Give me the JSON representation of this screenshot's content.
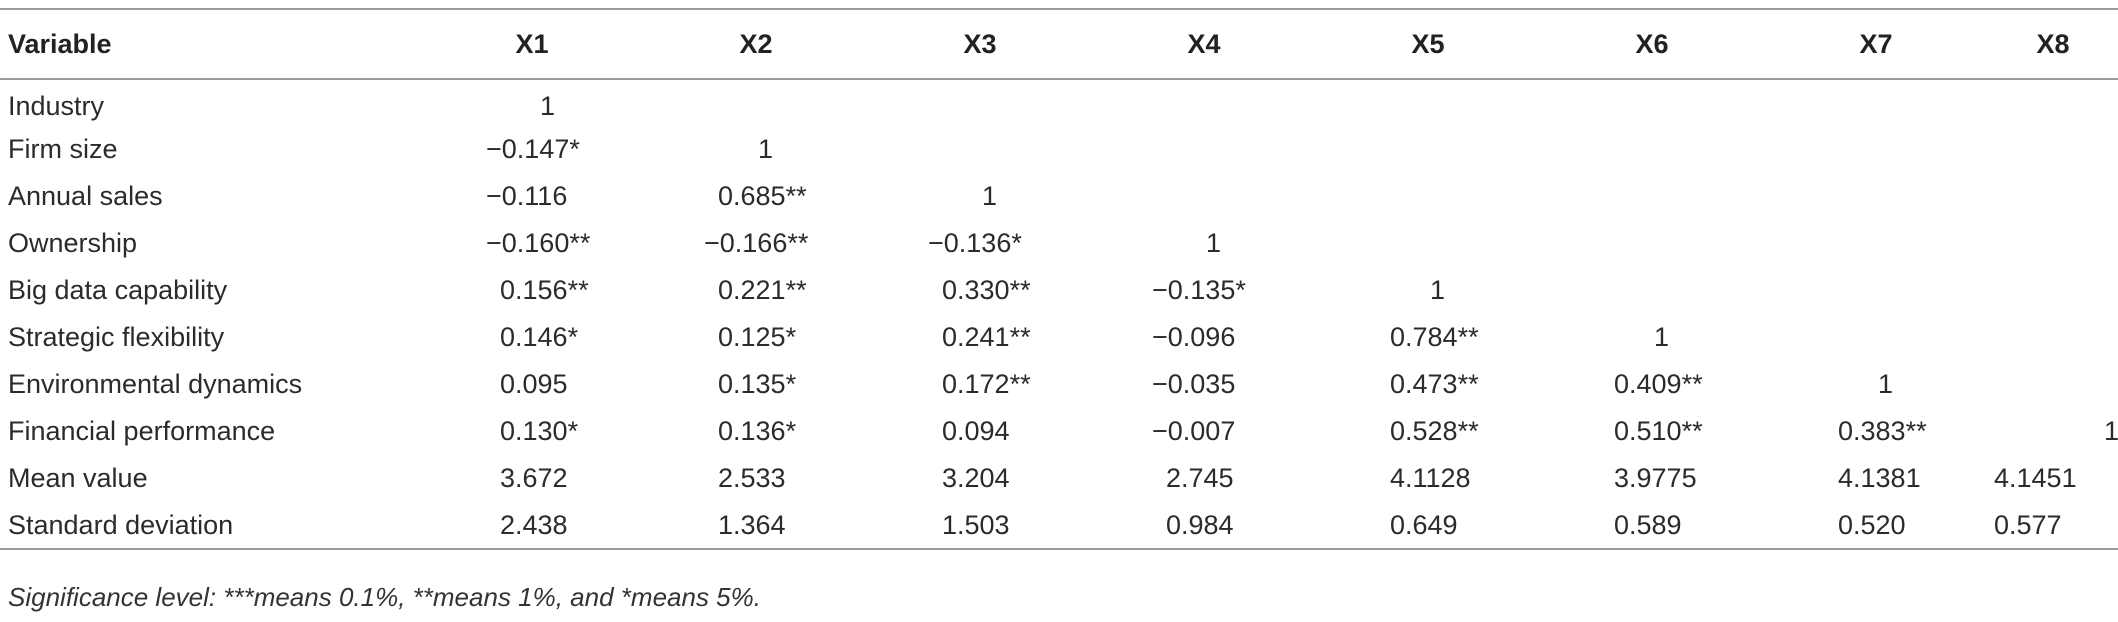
{
  "table": {
    "headers": [
      "Variable",
      "X1",
      "X2",
      "X3",
      "X4",
      "X5",
      "X6",
      "X7",
      "X8"
    ],
    "rows": [
      {
        "variable": "Industry",
        "values": [
          "1",
          "",
          "",
          "",
          "",
          "",
          "",
          ""
        ]
      },
      {
        "variable": "Firm size",
        "values": [
          "−0.147*",
          "1",
          "",
          "",
          "",
          "",
          "",
          ""
        ]
      },
      {
        "variable": "Annual sales",
        "values": [
          "−0.116",
          "0.685**",
          "1",
          "",
          "",
          "",
          "",
          ""
        ]
      },
      {
        "variable": "Ownership",
        "values": [
          "−0.160**",
          "−0.166**",
          "−0.136*",
          "1",
          "",
          "",
          "",
          ""
        ]
      },
      {
        "variable": "Big data capability",
        "values": [
          "0.156**",
          "0.221**",
          "0.330**",
          "−0.135*",
          "1",
          "",
          "",
          ""
        ]
      },
      {
        "variable": "Strategic flexibility",
        "values": [
          "0.146*",
          "0.125*",
          "0.241**",
          "−0.096",
          "0.784**",
          "1",
          "",
          ""
        ]
      },
      {
        "variable": "Environmental dynamics",
        "values": [
          "0.095",
          "0.135*",
          "0.172**",
          "−0.035",
          "0.473**",
          "0.409**",
          "1",
          ""
        ]
      },
      {
        "variable": "Financial performance",
        "values": [
          "0.130*",
          "0.136*",
          "0.094",
          "−0.007",
          "0.528**",
          "0.510**",
          "0.383**",
          "1"
        ]
      },
      {
        "variable": "Mean value",
        "values": [
          "3.672",
          "2.533",
          "3.204",
          "2.745",
          "4.1128",
          "3.9775",
          "4.1381",
          "4.1451"
        ]
      },
      {
        "variable": "Standard deviation",
        "values": [
          "2.438",
          "1.364",
          "1.503",
          "0.984",
          "0.649",
          "0.589",
          "0.520",
          "0.577"
        ]
      }
    ]
  },
  "footnote": "Significance level: ***means 0.1%, **means 1%, and *means 5%."
}
